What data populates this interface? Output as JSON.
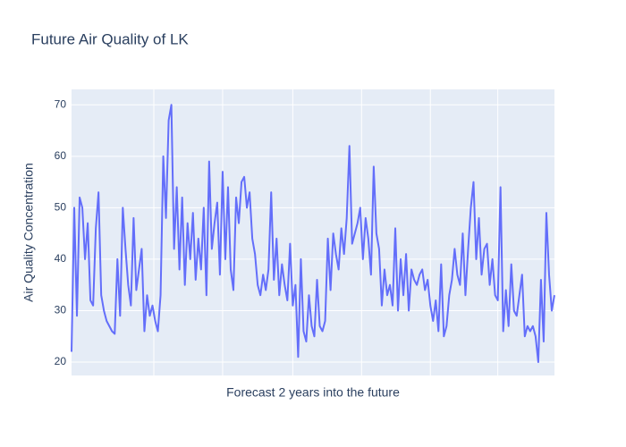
{
  "chart_data": {
    "type": "line",
    "title": "Future Air Quality of LK",
    "x_label": "Forecast 2 years into the future",
    "y_label": "Air Quality Concentration",
    "series": [
      {
        "name": "Air Quality Concentration",
        "color": "#636efa",
        "values": [
          22,
          50,
          29,
          52,
          50,
          40,
          47,
          32,
          31,
          46,
          53,
          33,
          30,
          28,
          27,
          26,
          25.5,
          40,
          29,
          50,
          42,
          35,
          31,
          48,
          34,
          38,
          42,
          26,
          33,
          29,
          31,
          28,
          26,
          33,
          60,
          48,
          67,
          70,
          42,
          54,
          38,
          52,
          35,
          47,
          40,
          49,
          36,
          44,
          38,
          50,
          33,
          59,
          42,
          47,
          51,
          37,
          57,
          40,
          54,
          38,
          34,
          52,
          47,
          55,
          56,
          50,
          53,
          44,
          41,
          35,
          33,
          37,
          34,
          38,
          53,
          36,
          44,
          33,
          39,
          35,
          32,
          43,
          31,
          35,
          21,
          40,
          26,
          24,
          33,
          27,
          25,
          36,
          27,
          26,
          28,
          44,
          34,
          45,
          41,
          38,
          46,
          41,
          48,
          62,
          43,
          45,
          47,
          50,
          40,
          48,
          44,
          37,
          58,
          45,
          42,
          31,
          38,
          33,
          35,
          31,
          46,
          30,
          40,
          33,
          41,
          30,
          38,
          36,
          35,
          37,
          38,
          34,
          36,
          31,
          28,
          32,
          26,
          39,
          25,
          27,
          33,
          36,
          42,
          37,
          35,
          45,
          33,
          42,
          50,
          55,
          40,
          48,
          37,
          42,
          43,
          35,
          40,
          33,
          32,
          54,
          26,
          34,
          27,
          39,
          30,
          29,
          33,
          37,
          25,
          27,
          26,
          27,
          25,
          20,
          36,
          24,
          49,
          37,
          30,
          33
        ]
      }
    ],
    "xlim": [
      0,
      179
    ],
    "xticks": [
      30.5,
      56,
      82,
      107.5,
      133,
      158
    ],
    "ylim": [
      17.4,
      73
    ],
    "yticks": [
      20,
      30,
      40,
      50,
      60,
      70
    ],
    "grid": true,
    "background": "#e5ecf6"
  }
}
